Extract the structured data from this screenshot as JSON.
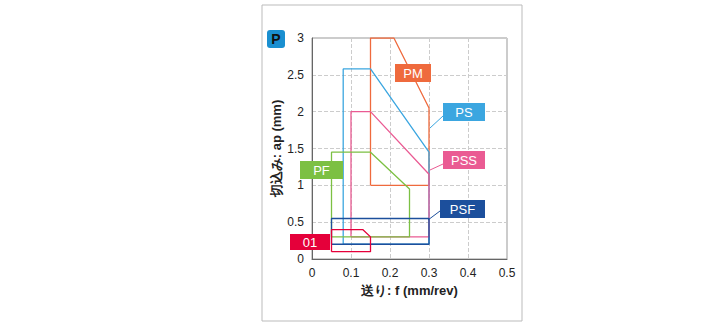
{
  "chart_data": {
    "type": "polygon",
    "title": "P",
    "x_label": "送り: f (mm/rev)",
    "y_label": "切込み: ap (mm)",
    "xlim": [
      0,
      0.5
    ],
    "xticks": [
      0,
      0.1,
      0.2,
      0.3,
      0.4,
      0.5
    ],
    "ylim": [
      0,
      3
    ],
    "yticks": [
      0,
      0.5,
      1,
      1.5,
      2,
      2.5,
      3
    ],
    "grid": true,
    "series": [
      {
        "name": "PM",
        "color": "#ef6a3d",
        "x": [
          0.15,
          0.15,
          0.21,
          0.3,
          0.3,
          0.15
        ],
        "y": [
          1.0,
          3.0,
          3.0,
          2.05,
          1.0,
          1.0
        ]
      },
      {
        "name": "PS",
        "color": "#3ba6e0",
        "x": [
          0.08,
          0.08,
          0.15,
          0.3,
          0.3,
          0.08
        ],
        "y": [
          0.2,
          2.58,
          2.58,
          1.45,
          0.2,
          0.2
        ]
      },
      {
        "name": "PSS",
        "color": "#ea5b93",
        "x": [
          0.1,
          0.1,
          0.15,
          0.3,
          0.3,
          0.1
        ],
        "y": [
          0.3,
          2.0,
          2.0,
          1.15,
          0.3,
          0.3
        ]
      },
      {
        "name": "PF",
        "color": "#7cc043",
        "x": [
          0.05,
          0.05,
          0.15,
          0.25,
          0.25,
          0.05
        ],
        "y": [
          0.3,
          1.45,
          1.45,
          0.95,
          0.3,
          0.3
        ]
      },
      {
        "name": "PSF",
        "color": "#1c4f9c",
        "x": [
          0.05,
          0.05,
          0.3,
          0.3,
          0.05
        ],
        "y": [
          0.2,
          0.55,
          0.55,
          0.2,
          0.2
        ]
      },
      {
        "name": "01",
        "color": "#e5003a",
        "x": [
          0.05,
          0.05,
          0.13,
          0.15,
          0.15,
          0.05
        ],
        "y": [
          0.1,
          0.4,
          0.4,
          0.3,
          0.1,
          0.1
        ]
      }
    ]
  }
}
